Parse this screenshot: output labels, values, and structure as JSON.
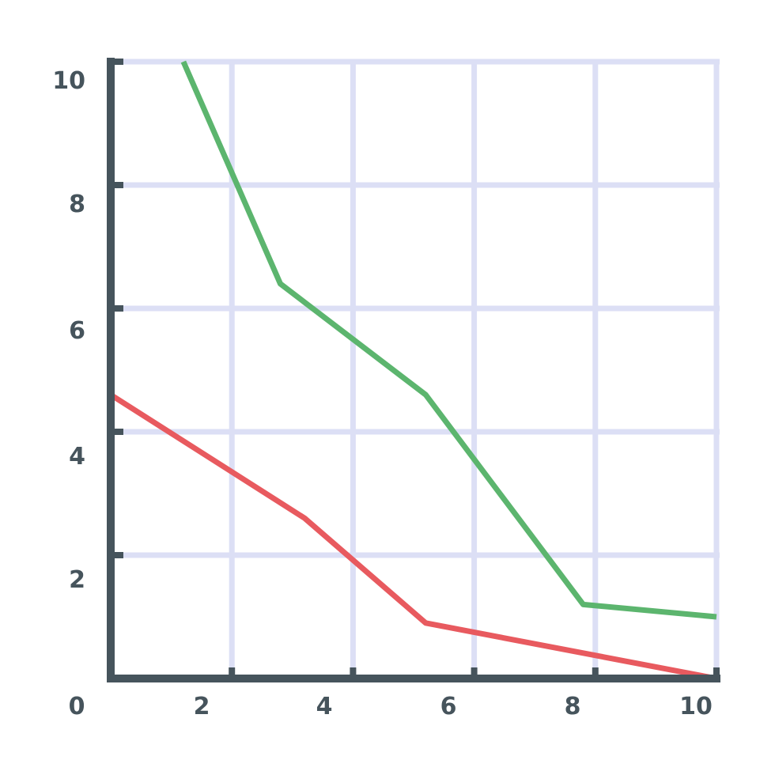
{
  "chart_data": {
    "type": "line",
    "title": "",
    "xlabel": "",
    "ylabel": "",
    "xlim": [
      0,
      10
    ],
    "ylim": [
      0,
      10
    ],
    "grid": true,
    "legend": "none",
    "x_ticks": [
      "2",
      "4",
      "6",
      "8",
      "10"
    ],
    "y_ticks": [
      "2",
      "4",
      "6",
      "8",
      "10"
    ],
    "origin_label": "0",
    "series": [
      {
        "color": "#5cb56e",
        "points": [
          [
            1.2,
            10
          ],
          [
            2.8,
            6.4
          ],
          [
            5.2,
            4.6
          ],
          [
            7.8,
            1.2
          ],
          [
            10,
            1
          ]
        ]
      },
      {
        "color": "#e85a5f",
        "points": [
          [
            0,
            4.6
          ],
          [
            3.2,
            2.6
          ],
          [
            5.2,
            0.9
          ],
          [
            10,
            0
          ]
        ]
      }
    ]
  },
  "colors": {
    "axis": "#46545c",
    "grid": "#dcdff5",
    "labels": "#46545c"
  }
}
